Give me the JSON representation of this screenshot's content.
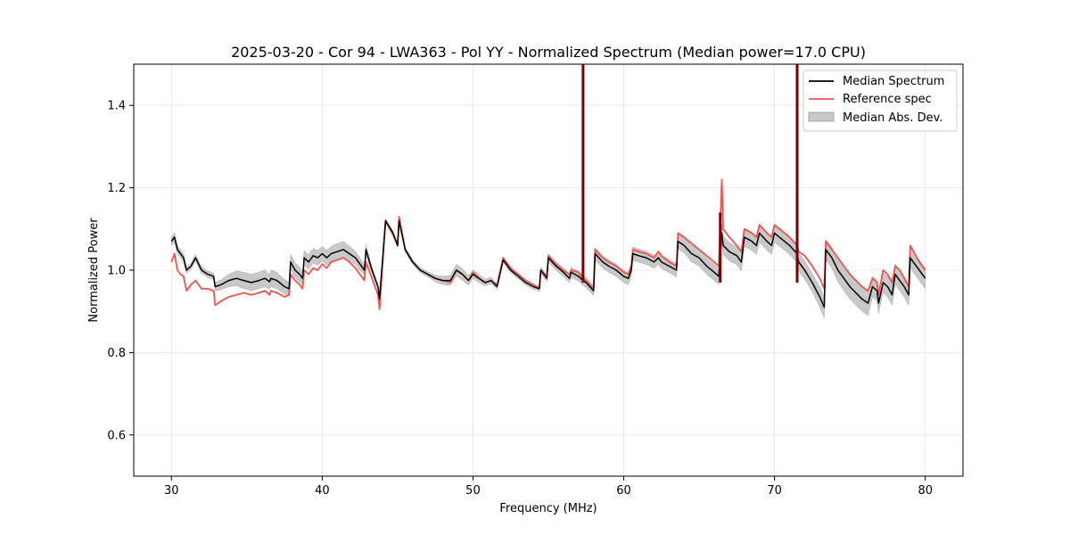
{
  "chart_data": {
    "type": "line",
    "title": "2025-03-20 - Cor 94 - LWA363 - Pol YY - Normalized Spectrum (Median power=17.0 CPU)",
    "xlabel": "Frequency (MHz)",
    "ylabel": "Normalized Power",
    "xlim": [
      27.5,
      82.5
    ],
    "ylim": [
      0.5,
      1.5
    ],
    "xticks": [
      30,
      40,
      50,
      60,
      70,
      80
    ],
    "yticks": [
      0.6,
      0.8,
      1.0,
      1.2,
      1.4
    ],
    "xtick_labels": [
      "30",
      "40",
      "50",
      "60",
      "70",
      "80"
    ],
    "ytick_labels": [
      "0.6",
      "0.8",
      "1.0",
      "1.2",
      "1.4"
    ],
    "grid": true,
    "legend_position": "top-right",
    "colors": {
      "median": "#000000",
      "reference": "#ef5350",
      "band": "#c8c8c8",
      "spike": "#7a0000"
    },
    "series": [
      {
        "name": "Median Spectrum",
        "x": [
          30.0,
          30.2,
          30.4,
          30.6,
          30.8,
          31.0,
          31.3,
          31.6,
          32.0,
          32.4,
          32.8,
          32.9,
          33.3,
          33.8,
          34.3,
          34.8,
          35.3,
          35.8,
          36.2,
          36.5,
          36.6,
          37.0,
          37.5,
          37.8,
          37.9,
          38.2,
          38.5,
          38.7,
          38.8,
          39.1,
          39.4,
          39.7,
          40.0,
          40.3,
          40.6,
          41.0,
          41.4,
          41.8,
          42.2,
          42.5,
          42.8,
          42.9,
          43.3,
          43.7,
          43.8,
          44.2,
          44.7,
          45.0,
          45.1,
          45.5,
          46.0,
          46.5,
          47.0,
          47.5,
          48.0,
          48.5,
          48.9,
          49.3,
          49.7,
          50.0,
          50.4,
          50.8,
          51.2,
          51.6,
          52.0,
          52.5,
          53.0,
          53.5,
          54.0,
          54.4,
          54.5,
          54.9,
          55.0,
          55.5,
          56.0,
          56.4,
          56.5,
          57.0,
          57.3,
          57.5,
          58.0,
          58.1,
          58.6,
          59.0,
          59.5,
          60.0,
          60.3,
          60.5,
          60.6,
          61.0,
          61.5,
          62.0,
          62.3,
          62.5,
          63.0,
          63.5,
          63.6,
          64.0,
          64.5,
          65.0,
          65.5,
          66.0,
          66.3,
          66.5,
          66.6,
          67.0,
          67.5,
          67.8,
          68.0,
          68.5,
          68.8,
          69.0,
          69.5,
          69.8,
          70.0,
          70.5,
          71.0,
          71.5,
          71.6,
          72.0,
          72.5,
          73.0,
          73.3,
          73.4,
          73.8,
          74.2,
          74.6,
          75.0,
          75.4,
          75.8,
          76.2,
          76.5,
          76.8,
          76.9,
          77.2,
          77.5,
          77.8,
          78.0,
          78.3,
          78.6,
          78.9,
          79.0,
          79.3,
          79.6,
          80.0
        ],
        "values": [
          1.07,
          1.08,
          1.05,
          1.04,
          1.03,
          1.0,
          1.01,
          1.03,
          1.0,
          0.99,
          0.985,
          0.96,
          0.965,
          0.975,
          0.98,
          0.975,
          0.97,
          0.975,
          0.98,
          0.972,
          0.98,
          0.975,
          0.96,
          0.955,
          1.02,
          1.0,
          0.99,
          0.98,
          1.03,
          1.02,
          1.035,
          1.03,
          1.04,
          1.03,
          1.04,
          1.045,
          1.05,
          1.04,
          1.03,
          1.015,
          1.0,
          1.05,
          1.0,
          0.96,
          0.93,
          1.12,
          1.09,
          1.06,
          1.12,
          1.05,
          1.02,
          1.0,
          0.99,
          0.98,
          0.975,
          0.975,
          1.0,
          0.99,
          0.975,
          0.99,
          0.98,
          0.97,
          0.975,
          0.96,
          1.025,
          1.0,
          0.985,
          0.97,
          0.96,
          0.955,
          1.0,
          0.98,
          1.03,
          1.01,
          0.995,
          0.98,
          0.995,
          0.985,
          0.975,
          0.97,
          0.95,
          1.04,
          1.02,
          1.01,
          1.0,
          0.985,
          0.98,
          1.0,
          1.04,
          1.035,
          1.03,
          1.02,
          1.03,
          1.02,
          1.01,
          1.0,
          1.07,
          1.06,
          1.04,
          1.03,
          1.01,
          0.995,
          0.985,
          1.09,
          1.06,
          1.045,
          1.035,
          1.02,
          1.08,
          1.07,
          1.06,
          1.09,
          1.07,
          1.06,
          1.09,
          1.075,
          1.06,
          1.04,
          1.02,
          1.0,
          0.97,
          0.935,
          0.91,
          1.05,
          1.03,
          1.0,
          0.98,
          0.96,
          0.945,
          0.93,
          0.92,
          0.96,
          0.95,
          0.92,
          0.97,
          0.96,
          0.94,
          0.99,
          0.975,
          0.96,
          0.94,
          1.03,
          1.015,
          1.0,
          0.98
        ],
        "spikes": [
          {
            "x": 57.3,
            "peak": 1.5
          },
          {
            "x": 66.4,
            "peak": 1.14
          },
          {
            "x": 71.5,
            "peak": 1.5
          }
        ]
      },
      {
        "name": "Reference spec",
        "x": [
          30.0,
          30.2,
          30.4,
          30.6,
          30.8,
          31.0,
          31.3,
          31.6,
          32.0,
          32.4,
          32.8,
          32.9,
          33.3,
          33.8,
          34.3,
          34.8,
          35.3,
          35.8,
          36.2,
          36.5,
          36.6,
          37.0,
          37.5,
          37.8,
          37.9,
          38.2,
          38.5,
          38.7,
          38.8,
          39.1,
          39.4,
          39.7,
          40.0,
          40.3,
          40.6,
          41.0,
          41.4,
          41.8,
          42.2,
          42.5,
          42.8,
          42.9,
          43.3,
          43.7,
          43.8,
          44.2,
          44.7,
          45.0,
          45.1,
          45.5,
          46.0,
          46.5,
          47.0,
          47.5,
          48.0,
          48.5,
          48.9,
          49.3,
          49.7,
          50.0,
          50.4,
          50.8,
          51.2,
          51.6,
          52.0,
          52.5,
          53.0,
          53.5,
          54.0,
          54.4,
          54.5,
          54.9,
          55.0,
          55.5,
          56.0,
          56.4,
          56.5,
          57.0,
          57.3,
          57.5,
          58.0,
          58.1,
          58.6,
          59.0,
          59.5,
          60.0,
          60.3,
          60.5,
          60.6,
          61.0,
          61.5,
          62.0,
          62.3,
          62.5,
          63.0,
          63.5,
          63.6,
          64.0,
          64.5,
          65.0,
          65.5,
          66.0,
          66.3,
          66.5,
          66.6,
          67.0,
          67.5,
          67.8,
          68.0,
          68.5,
          68.8,
          69.0,
          69.5,
          69.8,
          70.0,
          70.5,
          71.0,
          71.5,
          71.6,
          72.0,
          72.5,
          73.0,
          73.3,
          73.4,
          73.8,
          74.2,
          74.6,
          75.0,
          75.4,
          75.8,
          76.2,
          76.5,
          76.8,
          76.9,
          77.2,
          77.5,
          77.8,
          78.0,
          78.3,
          78.6,
          78.9,
          79.0,
          79.3,
          79.6,
          80.0
        ],
        "values": [
          1.02,
          1.04,
          1.0,
          0.99,
          0.985,
          0.95,
          0.965,
          0.975,
          0.955,
          0.955,
          0.95,
          0.915,
          0.925,
          0.935,
          0.94,
          0.945,
          0.94,
          0.945,
          0.95,
          0.94,
          0.95,
          0.945,
          0.935,
          0.94,
          0.99,
          0.975,
          0.965,
          0.955,
          1.0,
          0.99,
          1.005,
          1.0,
          1.015,
          1.005,
          1.02,
          1.025,
          1.03,
          1.02,
          1.005,
          0.99,
          0.975,
          1.02,
          0.98,
          0.94,
          0.905,
          1.12,
          1.085,
          1.06,
          1.13,
          1.05,
          1.02,
          1.0,
          0.99,
          0.98,
          0.975,
          0.97,
          1.0,
          0.99,
          0.975,
          0.995,
          0.98,
          0.97,
          0.975,
          0.965,
          1.03,
          1.005,
          0.99,
          0.975,
          0.965,
          0.955,
          1.0,
          0.985,
          1.035,
          1.015,
          1.0,
          0.99,
          1.0,
          0.995,
          0.98,
          0.975,
          0.955,
          1.05,
          1.03,
          1.02,
          1.01,
          0.995,
          0.99,
          1.01,
          1.05,
          1.045,
          1.04,
          1.03,
          1.045,
          1.035,
          1.02,
          1.01,
          1.09,
          1.08,
          1.065,
          1.05,
          1.035,
          1.02,
          1.01,
          1.22,
          1.1,
          1.08,
          1.06,
          1.045,
          1.1,
          1.09,
          1.08,
          1.11,
          1.09,
          1.08,
          1.11,
          1.095,
          1.08,
          1.06,
          1.045,
          1.035,
          1.01,
          0.98,
          0.955,
          1.07,
          1.05,
          1.03,
          1.01,
          0.99,
          0.975,
          0.96,
          0.95,
          0.98,
          0.97,
          0.94,
          1.0,
          0.99,
          0.97,
          1.01,
          1.0,
          0.98,
          0.96,
          1.06,
          1.04,
          1.02,
          1.0
        ]
      },
      {
        "name": "Median Abs. Dev.",
        "type": "band",
        "mad_values": [
          0.01,
          0.012,
          0.01,
          0.01,
          0.01,
          0.008,
          0.008,
          0.008,
          0.008,
          0.008,
          0.008,
          0.01,
          0.012,
          0.015,
          0.018,
          0.02,
          0.02,
          0.02,
          0.02,
          0.018,
          0.02,
          0.02,
          0.018,
          0.016,
          0.018,
          0.018,
          0.018,
          0.016,
          0.018,
          0.018,
          0.018,
          0.018,
          0.018,
          0.018,
          0.018,
          0.02,
          0.02,
          0.018,
          0.016,
          0.015,
          0.012,
          0.012,
          0.008,
          0.006,
          0.005,
          0.005,
          0.005,
          0.005,
          0.006,
          0.006,
          0.006,
          0.006,
          0.006,
          0.008,
          0.01,
          0.012,
          0.014,
          0.014,
          0.012,
          0.01,
          0.01,
          0.008,
          0.008,
          0.006,
          0.006,
          0.006,
          0.006,
          0.006,
          0.006,
          0.006,
          0.008,
          0.008,
          0.01,
          0.01,
          0.01,
          0.01,
          0.012,
          0.012,
          0.012,
          0.012,
          0.012,
          0.015,
          0.015,
          0.015,
          0.015,
          0.015,
          0.015,
          0.015,
          0.016,
          0.016,
          0.016,
          0.016,
          0.016,
          0.016,
          0.016,
          0.016,
          0.018,
          0.018,
          0.02,
          0.02,
          0.02,
          0.02,
          0.02,
          0.022,
          0.022,
          0.022,
          0.022,
          0.022,
          0.022,
          0.022,
          0.022,
          0.022,
          0.022,
          0.022,
          0.022,
          0.022,
          0.022,
          0.022,
          0.022,
          0.022,
          0.022,
          0.025,
          0.025,
          0.025,
          0.025,
          0.028,
          0.03,
          0.03,
          0.03,
          0.03,
          0.03,
          0.025,
          0.025,
          0.025,
          0.025,
          0.025,
          0.025,
          0.025,
          0.025,
          0.025,
          0.025,
          0.025,
          0.025,
          0.025,
          0.025
        ]
      }
    ]
  }
}
